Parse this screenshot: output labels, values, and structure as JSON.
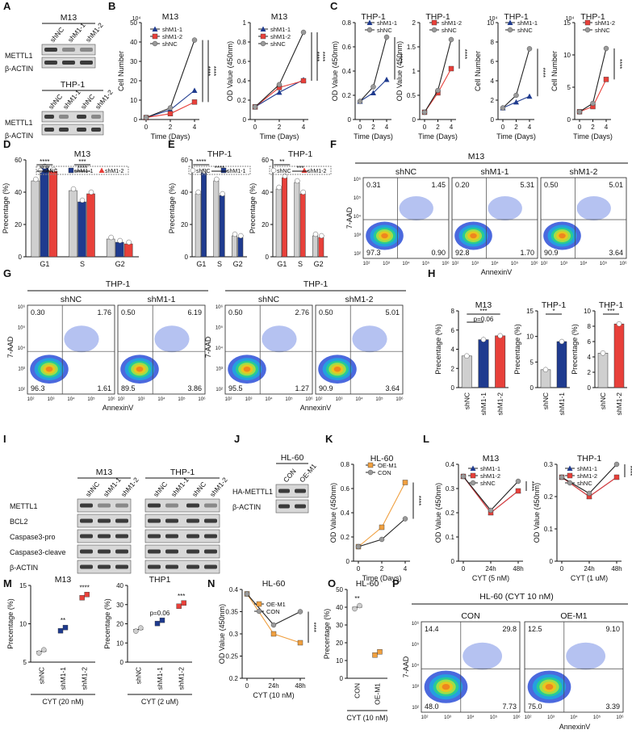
{
  "panel_letters": [
    "A",
    "B",
    "C",
    "D",
    "E",
    "F",
    "G",
    "H",
    "I",
    "J",
    "K",
    "L",
    "M",
    "N",
    "O",
    "P"
  ],
  "colors": {
    "blue": "#1f3b8f",
    "red": "#e8403a",
    "gray": "#9a9a9a",
    "light_gray": "#cfcfcf",
    "orange": "#f0a040",
    "lane": "#2a2a2a"
  },
  "star_labels": {
    "s2": "**",
    "s3": "***",
    "s4": "****",
    "p006": "p=0.06"
  },
  "panelA": {
    "m13": {
      "cell": "M13",
      "lanes": [
        "shNC",
        "shM1-1",
        "shM1-2"
      ],
      "rows": [
        "METTL1",
        "β-ACTIN"
      ]
    },
    "thp1": {
      "cell": "THP-1",
      "lanes": [
        "shNC",
        "shM1-1",
        "shNC",
        "shM1-2"
      ],
      "rows": [
        "METTL1",
        "β-ACTIN"
      ]
    }
  },
  "panelF": {
    "cell": "M13",
    "groups": [
      {
        "name": "shNC",
        "q": [
          "0.31",
          "1.45",
          "97.3",
          "0.90"
        ]
      },
      {
        "name": "shM1-1",
        "q": [
          "0.20",
          "5.31",
          "92.8",
          "1.70"
        ]
      },
      {
        "name": "shM1-2",
        "q": [
          "0.50",
          "5.01",
          "90.9",
          "3.64"
        ]
      }
    ],
    "ylabel": "7-AAD",
    "xlabel": "AnnexinV"
  },
  "panelG": {
    "sets": [
      {
        "cell": "THP-1",
        "groups": [
          {
            "name": "shNC",
            "q": [
              "0.30",
              "1.76",
              "96.3",
              "1.61"
            ]
          },
          {
            "name": "shM1-1",
            "q": [
              "0.50",
              "6.19",
              "89.5",
              "3.86"
            ]
          }
        ]
      },
      {
        "cell": "THP-1",
        "groups": [
          {
            "name": "shNC",
            "q": [
              "0.50",
              "2.76",
              "95.5",
              "1.27"
            ]
          },
          {
            "name": "shM1-2",
            "q": [
              "0.50",
              "5.01",
              "90.9",
              "3.64"
            ]
          }
        ]
      }
    ],
    "ylabel": "7-AAD",
    "xlabel": "AnnexinV"
  },
  "panelI": {
    "m13": {
      "cell": "M13",
      "lanes": [
        "shNC",
        "shM1-1",
        "shM1-2"
      ]
    },
    "thp1": {
      "cell": "THP-1",
      "lanes": [
        "shNC",
        "shM1-1",
        "shNC",
        "shM1-2"
      ]
    },
    "rows": [
      "METTL1",
      "BCL2",
      "Caspase3-pro",
      "Caspase3-cleave",
      "β-ACTIN"
    ]
  },
  "panelJ": {
    "cell": "HL-60",
    "lanes": [
      "CON",
      "OE-M1"
    ],
    "rows": [
      "HA-METTL1",
      "β-ACTIN"
    ]
  },
  "panelP": {
    "title": "HL-60 (CYT 10 nM)",
    "groups": [
      {
        "name": "CON",
        "q": [
          "14.4",
          "29.8",
          "48.0",
          "7.73"
        ]
      },
      {
        "name": "OE-M1",
        "q": [
          "12.5",
          "9.10",
          "75.0",
          "3.39"
        ]
      }
    ],
    "ylabel": "7-AAD",
    "xlabel": "AnnexinV"
  },
  "flow_ticks": {
    "x": [
      "10²",
      "10³",
      "10⁴",
      "10⁵",
      "10⁶"
    ],
    "y": [
      "10²",
      "10³",
      "10⁴",
      "10⁵",
      "10⁶"
    ]
  },
  "chart_data": [
    {
      "id": "B1",
      "type": "line",
      "title": "M13",
      "xlabel": "Time (Days)",
      "ylabel": "Cell Number",
      "yscale_label": "10⁴",
      "x": [
        0,
        2,
        4
      ],
      "ylim": [
        0,
        50
      ],
      "yticks": [
        0,
        10,
        20,
        30,
        40,
        50
      ],
      "series": [
        {
          "name": "shM1-1",
          "values": [
            1,
            5,
            15
          ]
        },
        {
          "name": "shM1-2",
          "values": [
            1,
            3,
            9
          ]
        },
        {
          "name": "shNC",
          "values": [
            1,
            6,
            41
          ]
        }
      ],
      "stars": [
        "****",
        "****"
      ]
    },
    {
      "id": "B2",
      "type": "line",
      "title": "M13",
      "xlabel": "Time (Days)",
      "ylabel": "OD Value (450nm)",
      "x": [
        0,
        2,
        4
      ],
      "ylim": [
        0,
        1.0
      ],
      "yticks": [
        0,
        0.2,
        0.4,
        0.6,
        0.8,
        1.0
      ],
      "series": [
        {
          "name": "shM1-1",
          "values": [
            0.13,
            0.28,
            0.41
          ]
        },
        {
          "name": "shM1-2",
          "values": [
            0.13,
            0.33,
            0.4
          ]
        },
        {
          "name": "shNC",
          "values": [
            0.13,
            0.36,
            0.9
          ]
        }
      ],
      "stars": [
        "****",
        "****"
      ]
    },
    {
      "id": "C1",
      "type": "line",
      "title": "THP-1",
      "xlabel": "Time (Days)",
      "ylabel": "OD Value (450nm)",
      "x": [
        0,
        2,
        4
      ],
      "ylim": [
        0,
        0.8
      ],
      "yticks": [
        0,
        0.2,
        0.4,
        0.6,
        0.8
      ],
      "series": [
        {
          "name": "shM1-1",
          "values": [
            0.15,
            0.22,
            0.33
          ]
        },
        {
          "name": "shNC",
          "values": [
            0.15,
            0.27,
            0.68
          ]
        }
      ],
      "stars": [
        "****"
      ]
    },
    {
      "id": "C2",
      "type": "line",
      "title": "THP-1",
      "xlabel": "Time (Days)",
      "ylabel": "OD Value (450nm)",
      "x": [
        0,
        2,
        4
      ],
      "ylim": [
        0,
        2.0
      ],
      "yticks": [
        0,
        0.5,
        1.0,
        1.5,
        2.0
      ],
      "series": [
        {
          "name": "shM1-2",
          "values": [
            0.15,
            0.55,
            1.05
          ]
        },
        {
          "name": "shNC",
          "values": [
            0.15,
            0.6,
            1.65
          ]
        }
      ],
      "stars": [
        "****"
      ]
    },
    {
      "id": "C3",
      "type": "line",
      "title": "THP-1",
      "xlabel": "Time (Days)",
      "ylabel": "Cell Number",
      "yscale_label": "10⁴",
      "x": [
        0,
        2,
        4
      ],
      "ylim": [
        0,
        10
      ],
      "yticks": [
        0,
        2,
        4,
        6,
        8,
        10
      ],
      "series": [
        {
          "name": "shM1-1",
          "values": [
            1.2,
            1.8,
            2.4
          ]
        },
        {
          "name": "shNC",
          "values": [
            1.2,
            2.5,
            7.3
          ]
        }
      ],
      "stars": [
        "****"
      ]
    },
    {
      "id": "C4",
      "type": "line",
      "title": "THP-1",
      "xlabel": "Time (Days)",
      "ylabel": "Cell Number",
      "yscale_label": "10⁴",
      "x": [
        0,
        2,
        4
      ],
      "ylim": [
        0,
        15
      ],
      "yticks": [
        0,
        5,
        10,
        15
      ],
      "series": [
        {
          "name": "shM1-2",
          "values": [
            1.2,
            2.0,
            6.2
          ]
        },
        {
          "name": "shNC",
          "values": [
            1.2,
            2.5,
            11.0
          ]
        }
      ],
      "stars": [
        "****"
      ]
    },
    {
      "id": "D",
      "type": "bar",
      "title": "M13",
      "ylabel": "Precentage (%)",
      "categories": [
        "G1",
        "S",
        "G2"
      ],
      "ylim": [
        0,
        60
      ],
      "yticks": [
        0,
        20,
        40,
        60
      ],
      "series": [
        {
          "name": "shNC",
          "values": [
            47,
            41,
            11
          ]
        },
        {
          "name": "shM1-1",
          "values": [
            55,
            34,
            9
          ]
        },
        {
          "name": "shM1-2",
          "values": [
            53,
            39,
            8
          ]
        }
      ],
      "stars": [
        "****",
        "****",
        "***",
        "****"
      ]
    },
    {
      "id": "E1",
      "type": "bar",
      "title": "THP-1",
      "ylabel": "Precentage (%)",
      "categories": [
        "G1",
        "S",
        "G2"
      ],
      "ylim": [
        0,
        60
      ],
      "yticks": [
        0,
        20,
        40,
        60
      ],
      "series": [
        {
          "name": "shNC",
          "values": [
            39,
            47,
            13
          ]
        },
        {
          "name": "shM1-1",
          "values": [
            52,
            38,
            12
          ]
        }
      ],
      "stars": [
        "****",
        "****"
      ]
    },
    {
      "id": "E2",
      "type": "bar",
      "title": "THP-1",
      "ylabel": "Precentage (%)",
      "categories": [
        "G1",
        "S",
        "G2"
      ],
      "ylim": [
        0,
        60
      ],
      "yticks": [
        0,
        20,
        40,
        60
      ],
      "series": [
        {
          "name": "shNC",
          "values": [
            42,
            46,
            13
          ]
        },
        {
          "name": "shM1-2",
          "values": [
            49,
            39,
            12
          ]
        }
      ],
      "stars": [
        "**",
        "***"
      ]
    },
    {
      "id": "H1",
      "type": "bar",
      "title": "M13",
      "ylabel": "Precentage (%)",
      "categories": [
        "shNC",
        "shM1-1",
        "shM1-2"
      ],
      "ylim": [
        0,
        8
      ],
      "yticks": [
        0,
        2,
        4,
        6,
        8
      ],
      "values": [
        3.3,
        5.0,
        5.4
      ],
      "stars": [
        "***",
        "p=0.06"
      ]
    },
    {
      "id": "H2",
      "type": "bar",
      "title": "THP-1",
      "ylabel": "Precentage (%)",
      "categories": [
        "shNC",
        "shM1-1"
      ],
      "ylim": [
        0,
        15
      ],
      "yticks": [
        0,
        5,
        10,
        15
      ],
      "values": [
        3.5,
        9.0
      ],
      "stars": [
        "*"
      ]
    },
    {
      "id": "H3",
      "type": "bar",
      "title": "THP-1",
      "ylabel": "Precentage (%)",
      "categories": [
        "shNC",
        "shM1-2"
      ],
      "ylim": [
        0,
        10
      ],
      "yticks": [
        0,
        2,
        4,
        6,
        8,
        10
      ],
      "values": [
        4.5,
        8.3
      ],
      "stars": [
        "***"
      ]
    },
    {
      "id": "K",
      "type": "line",
      "title": "HL-60",
      "xlabel": "Time (Days)",
      "ylabel": "OD Value (450nm)",
      "x": [
        0,
        2,
        4
      ],
      "ylim": [
        0,
        0.8
      ],
      "yticks": [
        0,
        0.2,
        0.4,
        0.6,
        0.8
      ],
      "series": [
        {
          "name": "OE-M1",
          "values": [
            0.12,
            0.28,
            0.65
          ]
        },
        {
          "name": "CON",
          "values": [
            0.12,
            0.18,
            0.35
          ]
        }
      ],
      "stars": [
        "****"
      ]
    },
    {
      "id": "L1",
      "type": "line",
      "title": "M13",
      "xlabel": "CYT (5 nM)",
      "ylabel": "OD Value (450nm)",
      "categories": [
        "0",
        "24h",
        "48h"
      ],
      "ylim": [
        0,
        0.4
      ],
      "yticks": [
        0,
        0.1,
        0.2,
        0.3,
        0.4
      ],
      "series": [
        {
          "name": "shM1-1",
          "values": [
            0.35,
            0.2,
            0.29
          ]
        },
        {
          "name": "shM1-2",
          "values": [
            0.35,
            0.2,
            0.29
          ]
        },
        {
          "name": "shNC",
          "values": [
            0.35,
            0.21,
            0.33
          ]
        }
      ],
      "stars": [
        "****"
      ]
    },
    {
      "id": "L2",
      "type": "line",
      "title": "THP-1",
      "xlabel": "CYT (1 uM)",
      "ylabel": "OD Value (450nm)",
      "categories": [
        "0",
        "24h",
        "48h"
      ],
      "ylim": [
        0,
        0.3
      ],
      "yticks": [
        0,
        0.1,
        0.2,
        0.3
      ],
      "series": [
        {
          "name": "shM1-1",
          "values": [
            0.26,
            0.2,
            0.26
          ]
        },
        {
          "name": "shM1-2",
          "values": [
            0.26,
            0.2,
            0.26
          ]
        },
        {
          "name": "shNC",
          "values": [
            0.26,
            0.21,
            0.3
          ]
        }
      ],
      "stars": [
        "****"
      ]
    },
    {
      "id": "M1",
      "type": "scatter",
      "title": "M13",
      "xlabel": "CYT (20 nM)",
      "ylabel": "Precentage (%)",
      "categories": [
        "shNC",
        "shM1-1",
        "shM1-2"
      ],
      "ylim": [
        5,
        15
      ],
      "yticks": [
        5,
        10,
        15
      ],
      "values": [
        6.4,
        9.3,
        13.6
      ],
      "stars": [
        "",
        "**",
        "****"
      ]
    },
    {
      "id": "M2",
      "type": "scatter",
      "title": "THP1",
      "xlabel": "CYT (2 uM)",
      "ylabel": "Precentage (%)",
      "categories": [
        "shNC",
        "shM1-1",
        "shM1-2"
      ],
      "ylim": [
        0,
        40
      ],
      "yticks": [
        0,
        10,
        20,
        30,
        40
      ],
      "values": [
        17,
        21,
        30
      ],
      "stars": [
        "",
        "p=0.06",
        "***"
      ]
    },
    {
      "id": "N",
      "type": "line",
      "title": "HL-60",
      "xlabel": "CYT (10 nM)",
      "ylabel": "OD Value (450nm)",
      "categories": [
        "0",
        "24h",
        "48h"
      ],
      "ylim": [
        0.2,
        0.4
      ],
      "yticks": [
        0.2,
        0.25,
        0.3,
        0.35,
        0.4
      ],
      "series": [
        {
          "name": "OE-M1",
          "values": [
            0.39,
            0.3,
            0.28
          ]
        },
        {
          "name": "CON",
          "values": [
            0.39,
            0.32,
            0.35
          ]
        }
      ],
      "stars": [
        "****"
      ]
    },
    {
      "id": "O",
      "type": "scatter",
      "title": "HL-60",
      "xlabel": "CYT (10 nM)",
      "ylabel": "Precentage (%)",
      "categories": [
        "CON",
        "OE-M1"
      ],
      "ylim": [
        0,
        50
      ],
      "yticks": [
        0,
        10,
        20,
        30,
        40,
        50
      ],
      "values": [
        40,
        14
      ],
      "stars": [
        "**"
      ]
    }
  ]
}
